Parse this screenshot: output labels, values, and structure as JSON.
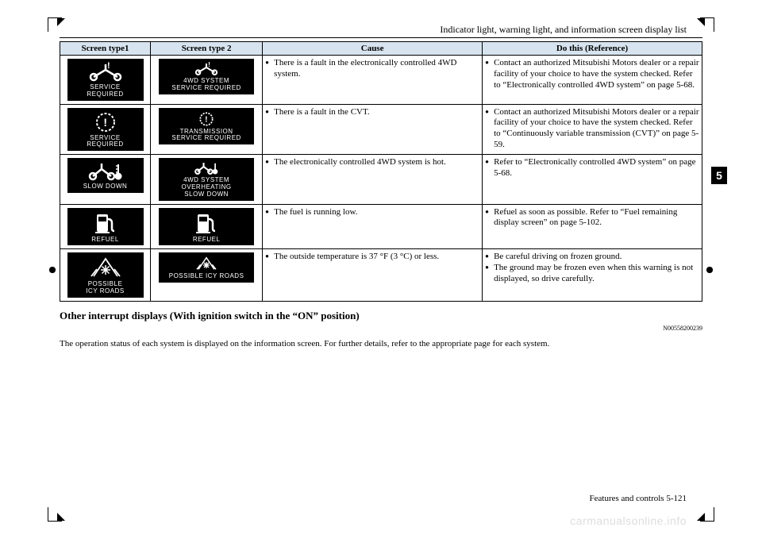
{
  "pageHeader": "Indicator light, warning light, and information screen display list",
  "thumbTab": "5",
  "watermark": "carmanualsonline.info",
  "table": {
    "headers": [
      "Screen type1",
      "Screen type 2",
      "Cause",
      "Do this (Reference)"
    ],
    "header_bg": "#d7e4ef",
    "rows": [
      {
        "icon1": {
          "svg": "axle-warn",
          "caption": "SERVICE\nREQUIRED"
        },
        "icon2": {
          "svg": "axle-warn-small",
          "caption": "4WD SYSTEM\nSERVICE REQUIRED"
        },
        "cause": [
          "There is a fault in the electronically controlled 4WD system."
        ],
        "doThis": [
          "Contact an authorized Mitsubishi Motors dealer or a repair facility of your choice to have the system checked. Refer to “Electronically controlled 4WD system” on page 5-68."
        ]
      },
      {
        "icon1": {
          "svg": "gear-warn",
          "caption": "SERVICE\nREQUIRED"
        },
        "icon2": {
          "svg": "gear-warn-small",
          "caption": "TRANSMISSION\nSERVICE REQUIRED"
        },
        "cause": [
          "There is a fault in the CVT."
        ],
        "doThis": [
          "Contact an authorized Mitsubishi Motors dealer or a repair facility of your choice to have the system checked. Refer to “Continuously variable transmission (CVT)” on page 5-59."
        ]
      },
      {
        "icon1": {
          "svg": "axle-temp",
          "caption": "SLOW  DOWN"
        },
        "icon2": {
          "svg": "axle-temp-small",
          "caption": "4WD SYSTEM\nOVERHEATING\nSLOW DOWN"
        },
        "cause": [
          "The electronically controlled 4WD system is hot."
        ],
        "doThis": [
          "Refer to “Electronically controlled 4WD system” on page 5-68."
        ]
      },
      {
        "icon1": {
          "svg": "fuel",
          "caption": "REFUEL"
        },
        "icon2": {
          "svg": "fuel",
          "caption": "REFUEL"
        },
        "cause": [
          "The fuel is running low."
        ],
        "doThis": [
          "Refuel as soon as possible. Refer to “Fuel remaining display screen” on page 5-102."
        ]
      },
      {
        "icon1": {
          "svg": "icy",
          "caption": "POSSIBLE\nICY ROADS"
        },
        "icon2": {
          "svg": "icy-small",
          "caption": "POSSIBLE ICY ROADS"
        },
        "cause": [
          "The outside temperature is 37 °F (3 °C) or less."
        ],
        "doThis": [
          "Be careful driving on frozen ground.",
          "The ground may be frozen even when this warning is not displayed, so drive carefully."
        ]
      }
    ]
  },
  "subhead": "Other interrupt displays (With ignition switch in the “ON” position)",
  "docnum": "N00558200239",
  "bodyText": "The operation status of each system is displayed on the information screen. For further details, refer to the appropriate page for each system.",
  "footer": "Features and controls    5-121",
  "svgs": {
    "axle-warn": "<svg width='44' height='26' viewBox='0 0 44 26'><g stroke='#fff' stroke-width='2.5' fill='none'><circle cx='7' cy='19' r='4'/><circle cx='37' cy='19' r='4'/><path d='M7 19 L22 10 L37 19'/><path d='M22 10 L22 3'/></g><text x='24' y='8' fill='#fff' font-size='11' font-weight='bold'>!</text></svg>",
    "axle-warn-small": "<svg width='34' height='18' viewBox='0 0 44 26'><g stroke='#fff' stroke-width='3' fill='none'><circle cx='7' cy='19' r='4'/><circle cx='37' cy='19' r='4'/><path d='M7 19 L22 10 L37 19'/><path d='M22 10 L22 3'/></g><text x='25' y='9' fill='#fff' font-size='12' font-weight='bold'>!</text></svg>",
    "gear-warn": "<svg width='40' height='28' viewBox='0 0 40 28'><g fill='none' stroke='#fff' stroke-width='2' stroke-dasharray='3 2'><circle cx='20' cy='14' r='11'/></g><text x='20' y='19' text-anchor='middle' fill='#fff' font-size='14' font-weight='bold'>!</text></svg>",
    "gear-warn-small": "<svg width='28' height='20' viewBox='0 0 40 28'><g fill='none' stroke='#fff' stroke-width='2.5' stroke-dasharray='3 2'><circle cx='20' cy='14' r='11'/></g><text x='20' y='19' text-anchor='middle' fill='#fff' font-size='15' font-weight='bold'>!</text></svg>",
    "axle-temp": "<svg width='46' height='26' viewBox='0 0 46 26'><g stroke='#fff' stroke-width='2.5' fill='none'><circle cx='7' cy='19' r='4'/><circle cx='30' cy='19' r='4'/><path d='M7 19 L18 10 L30 19'/><path d='M18 10 L18 3'/></g><g stroke='#fff' stroke-width='2' fill='#fff'><path d='M39 4 L39 16' fill='none'/><circle cx='39' cy='19' r='3.5'/><path d='M36 6 h3 M36 10 h3 M36 14 h3' stroke-width='1.5'/></g></svg>",
    "axle-temp-small": "<svg width='34' height='18' viewBox='0 0 46 26'><g stroke='#fff' stroke-width='3' fill='none'><circle cx='7' cy='19' r='4'/><circle cx='30' cy='19' r='4'/><path d='M7 19 L18 10 L30 19'/><path d='M18 10 L18 3'/></g><g stroke='#fff' stroke-width='2.5' fill='#fff'><path d='M39 4 L39 16' fill='none'/><circle cx='39' cy='19' r='3.5'/></g></svg>",
    "fuel": "<svg width='32' height='30' viewBox='0 0 32 30'><g fill='#fff'><rect x='5' y='4' width='14' height='22' rx='2'/><rect x='7' y='7' width='10' height='6' fill='#000'/><path d='M19 10 q5 0 5 5 v7 q0 3 3 3' fill='none' stroke='#fff' stroke-width='2.5'/><rect x='3' y='26' width='18' height='2'/></g></svg>",
    "icy": "<svg width='42' height='30' viewBox='0 0 42 30'><g stroke='#fff' stroke-width='1.8' fill='none'><path d='M6 26 L21 4 L36 26'/><path d='M3 26 L10 17 M39 26 L32 17'/></g><g stroke='#fff' stroke-width='1.5'><path d='M21 12 v12 M15 18 h12 M16.5 13.5 l9 9 M25.5 13.5 l-9 9'/></g></svg>",
    "icy-small": "<svg width='30' height='20' viewBox='0 0 42 30'><g stroke='#fff' stroke-width='2.2' fill='none'><path d='M6 26 L21 4 L36 26'/><path d='M3 26 L10 17 M39 26 L32 17'/></g><g stroke='#fff' stroke-width='2'><path d='M21 12 v12 M15 18 h12 M16.5 13.5 l9 9 M25.5 13.5 l-9 9'/></g></svg>"
  }
}
